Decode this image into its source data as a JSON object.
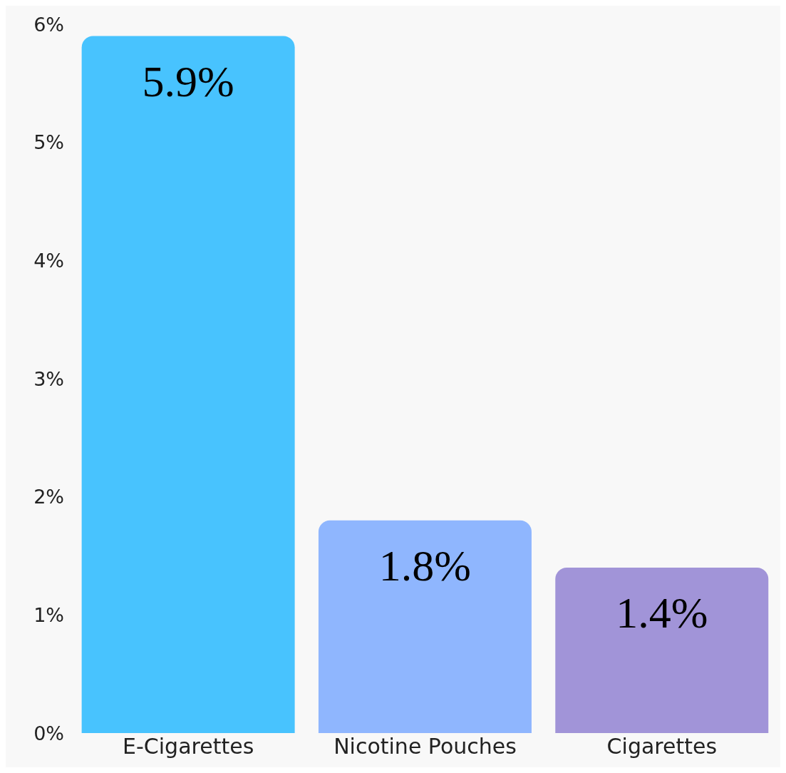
{
  "chart_data": {
    "type": "bar",
    "categories": [
      "E-Cigarettes",
      "Nicotine Pouches",
      "Cigarettes"
    ],
    "values": [
      5.9,
      1.8,
      1.4
    ],
    "colors": [
      "#48c3fe",
      "#8fb6fe",
      "#a194d8"
    ],
    "value_labels": [
      "5.9%",
      "1.8%",
      "1.4%"
    ],
    "ylim": [
      0,
      6
    ],
    "yticks": [
      {
        "value": 0,
        "label": "0%"
      },
      {
        "value": 1,
        "label": "1%"
      },
      {
        "value": 2,
        "label": "2%"
      },
      {
        "value": 3,
        "label": "3%"
      },
      {
        "value": 4,
        "label": "4%"
      },
      {
        "value": 5,
        "label": "5%"
      },
      {
        "value": 6,
        "label": "6%"
      }
    ],
    "grid": false,
    "legend": false
  }
}
